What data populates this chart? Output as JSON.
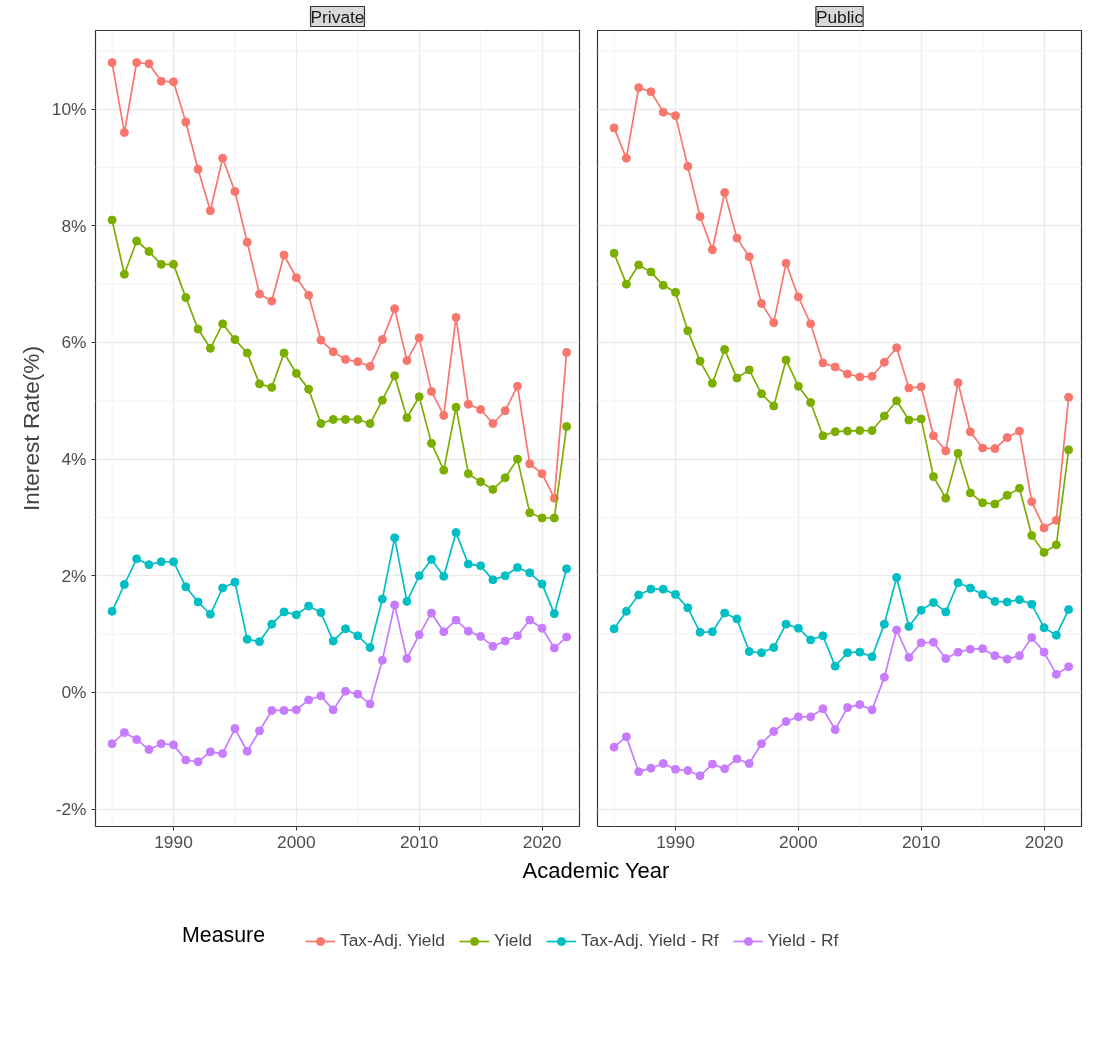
{
  "chart_data": [
    {
      "type": "line",
      "title": "Private",
      "xlabel": "Academic Year",
      "ylabel": "Interest Rate(%)",
      "legend_title": "Measure",
      "legend": "bottom",
      "marker": "circle",
      "grid": true,
      "x": [
        1985,
        1986,
        1987,
        1988,
        1989,
        1990,
        1991,
        1992,
        1993,
        1994,
        1995,
        1996,
        1997,
        1998,
        1999,
        2000,
        2001,
        2002,
        2003,
        2004,
        2005,
        2006,
        2007,
        2008,
        2009,
        2010,
        2011,
        2012,
        2013,
        2014,
        2015,
        2016,
        2017,
        2018,
        2019,
        2020,
        2021,
        2022
      ],
      "xlim": [
        1983.65,
        2023.05
      ],
      "xticks": [
        1990,
        2000,
        2010,
        2020
      ],
      "ylim": [
        -2.3,
        11.35
      ],
      "yticks": [
        {
          "value": -2,
          "label": "-2%"
        },
        {
          "value": 0,
          "label": "0%"
        },
        {
          "value": 2,
          "label": "2%"
        },
        {
          "value": 4,
          "label": "4%"
        },
        {
          "value": 6,
          "label": "6%"
        },
        {
          "value": 8,
          "label": "8%"
        },
        {
          "value": 10,
          "label": "10%"
        }
      ],
      "series": [
        {
          "name": "Tax-Adj. Yield",
          "color": "#f8766d",
          "values": [
            10.8,
            9.6,
            10.8,
            10.78,
            10.48,
            10.47,
            9.78,
            8.97,
            8.26,
            9.16,
            8.59,
            7.72,
            6.83,
            6.71,
            7.5,
            7.11,
            6.81,
            6.04,
            5.84,
            5.71,
            5.67,
            5.59,
            6.05,
            6.58,
            5.69,
            6.08,
            5.16,
            4.75,
            6.43,
            4.94,
            4.85,
            4.61,
            4.83,
            5.25,
            3.92,
            3.75,
            3.33,
            5.83
          ]
        },
        {
          "name": "Yield",
          "color": "#7cae00",
          "values": [
            8.1,
            7.17,
            7.74,
            7.56,
            7.34,
            7.34,
            6.77,
            6.23,
            5.9,
            6.32,
            6.05,
            5.82,
            5.29,
            5.23,
            5.82,
            5.47,
            5.2,
            4.61,
            4.68,
            4.68,
            4.68,
            4.61,
            5.01,
            5.43,
            4.71,
            5.07,
            4.27,
            3.81,
            4.89,
            3.75,
            3.61,
            3.48,
            3.68,
            4.0,
            3.08,
            2.99,
            2.99,
            4.56
          ]
        },
        {
          "name": "Tax-Adj. Yield - Rf",
          "color": "#00bfc4",
          "values": [
            1.39,
            1.85,
            2.29,
            2.19,
            2.24,
            2.24,
            1.81,
            1.55,
            1.34,
            1.79,
            1.89,
            0.91,
            0.87,
            1.17,
            1.38,
            1.33,
            1.48,
            1.37,
            0.88,
            1.09,
            0.97,
            0.77,
            1.6,
            2.65,
            1.56,
            2.0,
            2.28,
            1.99,
            2.74,
            2.2,
            2.17,
            1.93,
            2.0,
            2.14,
            2.05,
            1.86,
            1.35,
            2.12
          ]
        },
        {
          "name": "Yield - Rf",
          "color": "#c77cff",
          "values": [
            -0.88,
            -0.69,
            -0.81,
            -0.98,
            -0.88,
            -0.9,
            -1.16,
            -1.19,
            -1.02,
            -1.05,
            -0.62,
            -1.01,
            -0.66,
            -0.31,
            -0.31,
            -0.3,
            -0.13,
            -0.06,
            -0.3,
            0.02,
            -0.03,
            -0.2,
            0.55,
            1.5,
            0.58,
            0.99,
            1.36,
            1.04,
            1.24,
            1.05,
            0.96,
            0.79,
            0.88,
            0.97,
            1.24,
            1.1,
            0.76,
            0.95
          ]
        }
      ]
    },
    {
      "type": "line",
      "title": "Public",
      "marker": "circle",
      "grid": true,
      "tick_labels": "x",
      "x": [
        1985,
        1986,
        1987,
        1988,
        1989,
        1990,
        1991,
        1992,
        1993,
        1994,
        1995,
        1996,
        1997,
        1998,
        1999,
        2000,
        2001,
        2002,
        2003,
        2004,
        2005,
        2006,
        2007,
        2008,
        2009,
        2010,
        2011,
        2012,
        2013,
        2014,
        2015,
        2016,
        2017,
        2018,
        2019,
        2020,
        2021,
        2022
      ],
      "xlim": [
        1983.65,
        2023.05
      ],
      "xticks": [
        1990,
        2000,
        2010,
        2020
      ],
      "ylim": [
        -2.3,
        11.35
      ],
      "yticks": [
        -2,
        0,
        2,
        4,
        6,
        8,
        10
      ],
      "series": [
        {
          "color": "#f8766d",
          "values": [
            9.68,
            9.16,
            10.37,
            10.3,
            9.95,
            9.89,
            9.02,
            8.16,
            7.59,
            8.57,
            7.79,
            7.47,
            6.67,
            6.34,
            7.36,
            6.78,
            6.32,
            5.65,
            5.58,
            5.46,
            5.41,
            5.42,
            5.66,
            5.91,
            5.22,
            5.24,
            4.4,
            4.14,
            5.31,
            4.47,
            4.19,
            4.18,
            4.37,
            4.48,
            3.27,
            2.82,
            2.95,
            5.06
          ]
        },
        {
          "color": "#7cae00",
          "values": [
            7.53,
            7.0,
            7.33,
            7.21,
            6.98,
            6.86,
            6.2,
            5.68,
            5.3,
            5.88,
            5.39,
            5.53,
            5.12,
            4.91,
            5.7,
            5.25,
            4.97,
            4.4,
            4.47,
            4.48,
            4.49,
            4.49,
            4.74,
            5.0,
            4.67,
            4.69,
            3.7,
            3.33,
            4.1,
            3.42,
            3.25,
            3.23,
            3.38,
            3.5,
            2.69,
            2.4,
            2.53,
            4.16
          ]
        },
        {
          "color": "#00bfc4",
          "values": [
            1.09,
            1.39,
            1.67,
            1.77,
            1.77,
            1.68,
            1.45,
            1.03,
            1.04,
            1.36,
            1.26,
            0.7,
            0.68,
            0.77,
            1.17,
            1.1,
            0.9,
            0.97,
            0.45,
            0.68,
            0.69,
            0.61,
            1.17,
            1.97,
            1.13,
            1.41,
            1.54,
            1.38,
            1.88,
            1.79,
            1.68,
            1.56,
            1.55,
            1.59,
            1.51,
            1.11,
            0.98,
            1.42
          ]
        },
        {
          "color": "#c77cff",
          "values": [
            -0.94,
            -0.76,
            -1.36,
            -1.3,
            -1.22,
            -1.32,
            -1.34,
            -1.43,
            -1.23,
            -1.31,
            -1.14,
            -1.22,
            -0.88,
            -0.67,
            -0.5,
            -0.42,
            -0.42,
            -0.28,
            -0.64,
            -0.26,
            -0.21,
            -0.3,
            0.26,
            1.07,
            0.6,
            0.85,
            0.86,
            0.58,
            0.69,
            0.74,
            0.75,
            0.63,
            0.57,
            0.63,
            0.94,
            0.69,
            0.31,
            0.44
          ]
        }
      ]
    }
  ]
}
